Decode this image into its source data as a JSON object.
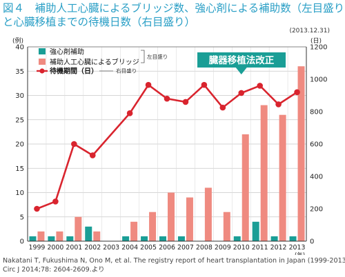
{
  "figure": {
    "title_line1": "図４　補助人工心臓によるブリッジ数、強心剤による補助数（左目盛り）",
    "title_line2": "と心臓移植までの待機日数（右目盛り）",
    "date_note": "(2013.12.31)",
    "source_line1": "Nakatani T, Fukushima N, Ono M, et al. The registry report of heart transplantation in Japan (1999-2013)",
    "source_line2": "Circ J 2014;78: 2604-2609.より"
  },
  "chart_data": {
    "type": "bar",
    "categories": [
      "1999",
      "2000",
      "2001",
      "2002",
      "2003",
      "2004",
      "2005",
      "2006",
      "2007",
      "2008",
      "2009",
      "2010",
      "2011",
      "2012",
      "2013"
    ],
    "y_left_unit": "(例)",
    "y_right_unit": "(日)",
    "x_unit": "(年)",
    "ylim_left": [
      0,
      40
    ],
    "ylim_right": [
      0,
      1200
    ],
    "yticks_left": [
      0,
      5,
      10,
      15,
      20,
      25,
      30,
      35,
      40
    ],
    "yticks_right": [
      0,
      200,
      400,
      600,
      800,
      1000,
      1200
    ],
    "grid": true,
    "legend_position": "top-left",
    "series": [
      {
        "name": "強心剤補助",
        "kind": "bar",
        "axis": "left",
        "color": "#1a9e96",
        "values": [
          1,
          1,
          1,
          3,
          0,
          1,
          1,
          1,
          1,
          0,
          0,
          1,
          4,
          1,
          1
        ]
      },
      {
        "name": "補助人工心臓によるブリッジ",
        "kind": "bar",
        "axis": "left",
        "color": "#ef8a80",
        "values": [
          2,
          2,
          5,
          2,
          0,
          4,
          6,
          10,
          9,
          11,
          6,
          22,
          28,
          26,
          36
        ]
      },
      {
        "name": "待機期間（日）",
        "kind": "line",
        "axis": "right",
        "color": "#d9242e",
        "values": [
          200,
          245,
          600,
          530,
          null,
          790,
          965,
          880,
          860,
          965,
          825,
          915,
          960,
          845,
          920
        ]
      }
    ],
    "legend_note_left": "左目盛り",
    "legend_note_right": "右目盛り",
    "annotation": "臓器移植法改正"
  }
}
